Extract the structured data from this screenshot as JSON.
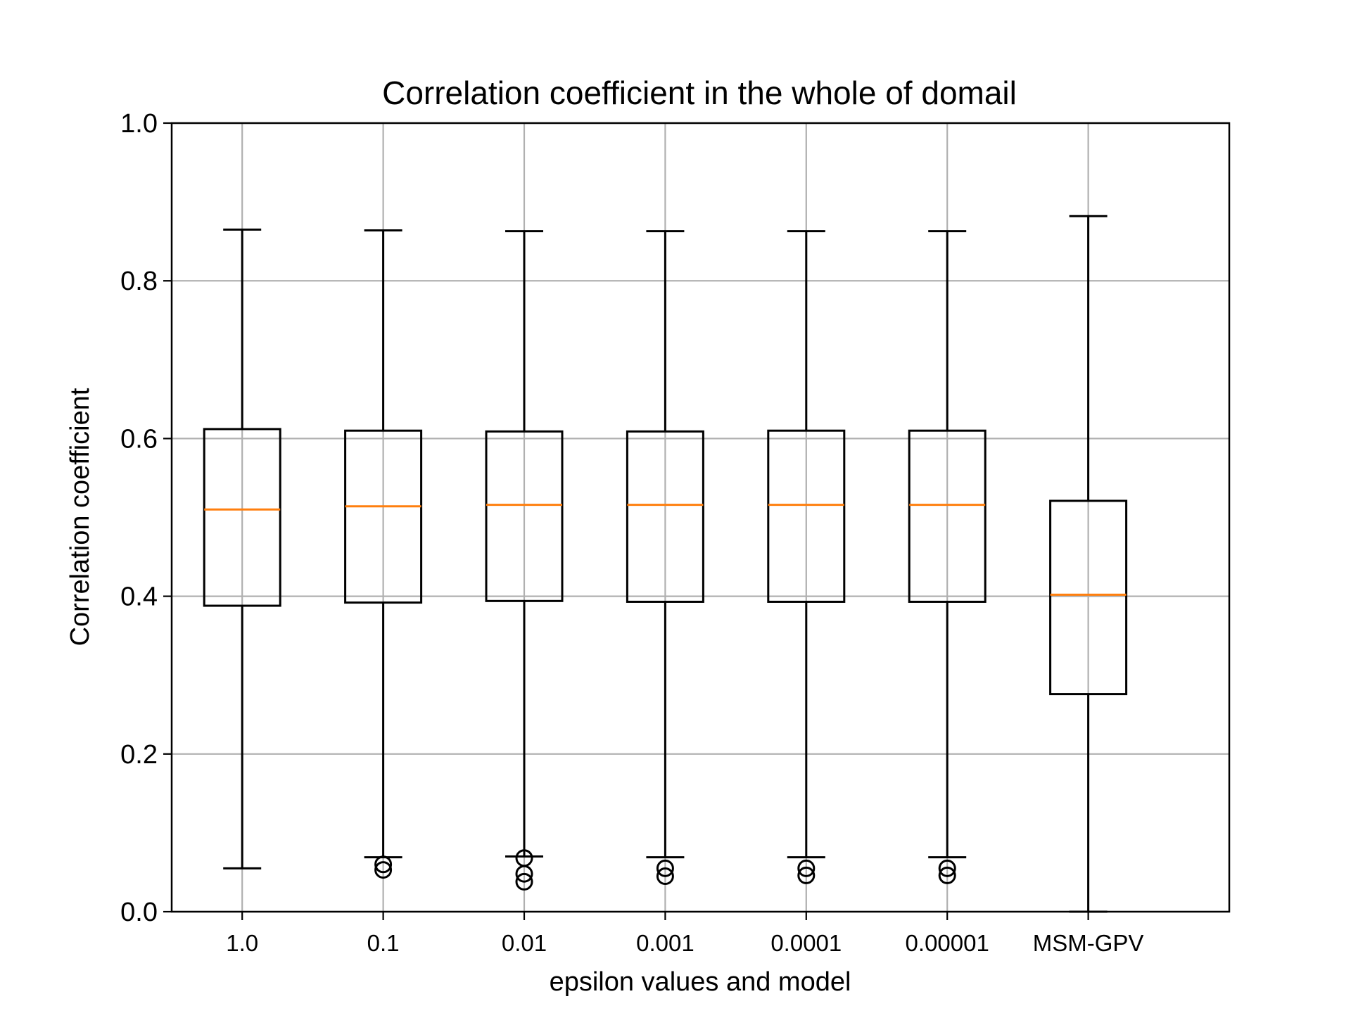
{
  "chart_data": {
    "type": "box",
    "title": "Correlation coefficient in the whole of domail",
    "xlabel": "epsilon values and model",
    "ylabel": "Correlation coefficient",
    "ylim": [
      0.0,
      1.0
    ],
    "yticks": [
      0.0,
      0.2,
      0.4,
      0.6,
      0.8,
      1.0
    ],
    "ytick_labels": [
      "0.0",
      "0.2",
      "0.4",
      "0.6",
      "0.8",
      "1.0"
    ],
    "grid": true,
    "colors": {
      "box": "#000000",
      "median": "#ff7f0e",
      "grid": "#b0b0b0"
    },
    "categories": [
      "1.0",
      "0.1",
      "0.01",
      "0.001",
      "0.0001",
      "0.00001",
      "MSM-GPV"
    ],
    "boxes": [
      {
        "whisker_low": 0.055,
        "q1": 0.388,
        "median": 0.51,
        "q3": 0.612,
        "whisker_high": 0.865,
        "fliers": []
      },
      {
        "whisker_low": 0.069,
        "q1": 0.392,
        "median": 0.514,
        "q3": 0.61,
        "whisker_high": 0.864,
        "fliers": [
          0.06,
          0.053
        ]
      },
      {
        "whisker_low": 0.07,
        "q1": 0.394,
        "median": 0.516,
        "q3": 0.609,
        "whisker_high": 0.863,
        "fliers": [
          0.068,
          0.048,
          0.038
        ]
      },
      {
        "whisker_low": 0.069,
        "q1": 0.393,
        "median": 0.516,
        "q3": 0.609,
        "whisker_high": 0.863,
        "fliers": [
          0.055,
          0.045
        ]
      },
      {
        "whisker_low": 0.069,
        "q1": 0.393,
        "median": 0.516,
        "q3": 0.61,
        "whisker_high": 0.863,
        "fliers": [
          0.055,
          0.046
        ]
      },
      {
        "whisker_low": 0.069,
        "q1": 0.393,
        "median": 0.516,
        "q3": 0.61,
        "whisker_high": 0.863,
        "fliers": [
          0.055,
          0.046
        ]
      },
      {
        "whisker_low": 0.0,
        "q1": 0.276,
        "median": 0.402,
        "q3": 0.521,
        "whisker_high": 0.882,
        "fliers": []
      }
    ]
  }
}
